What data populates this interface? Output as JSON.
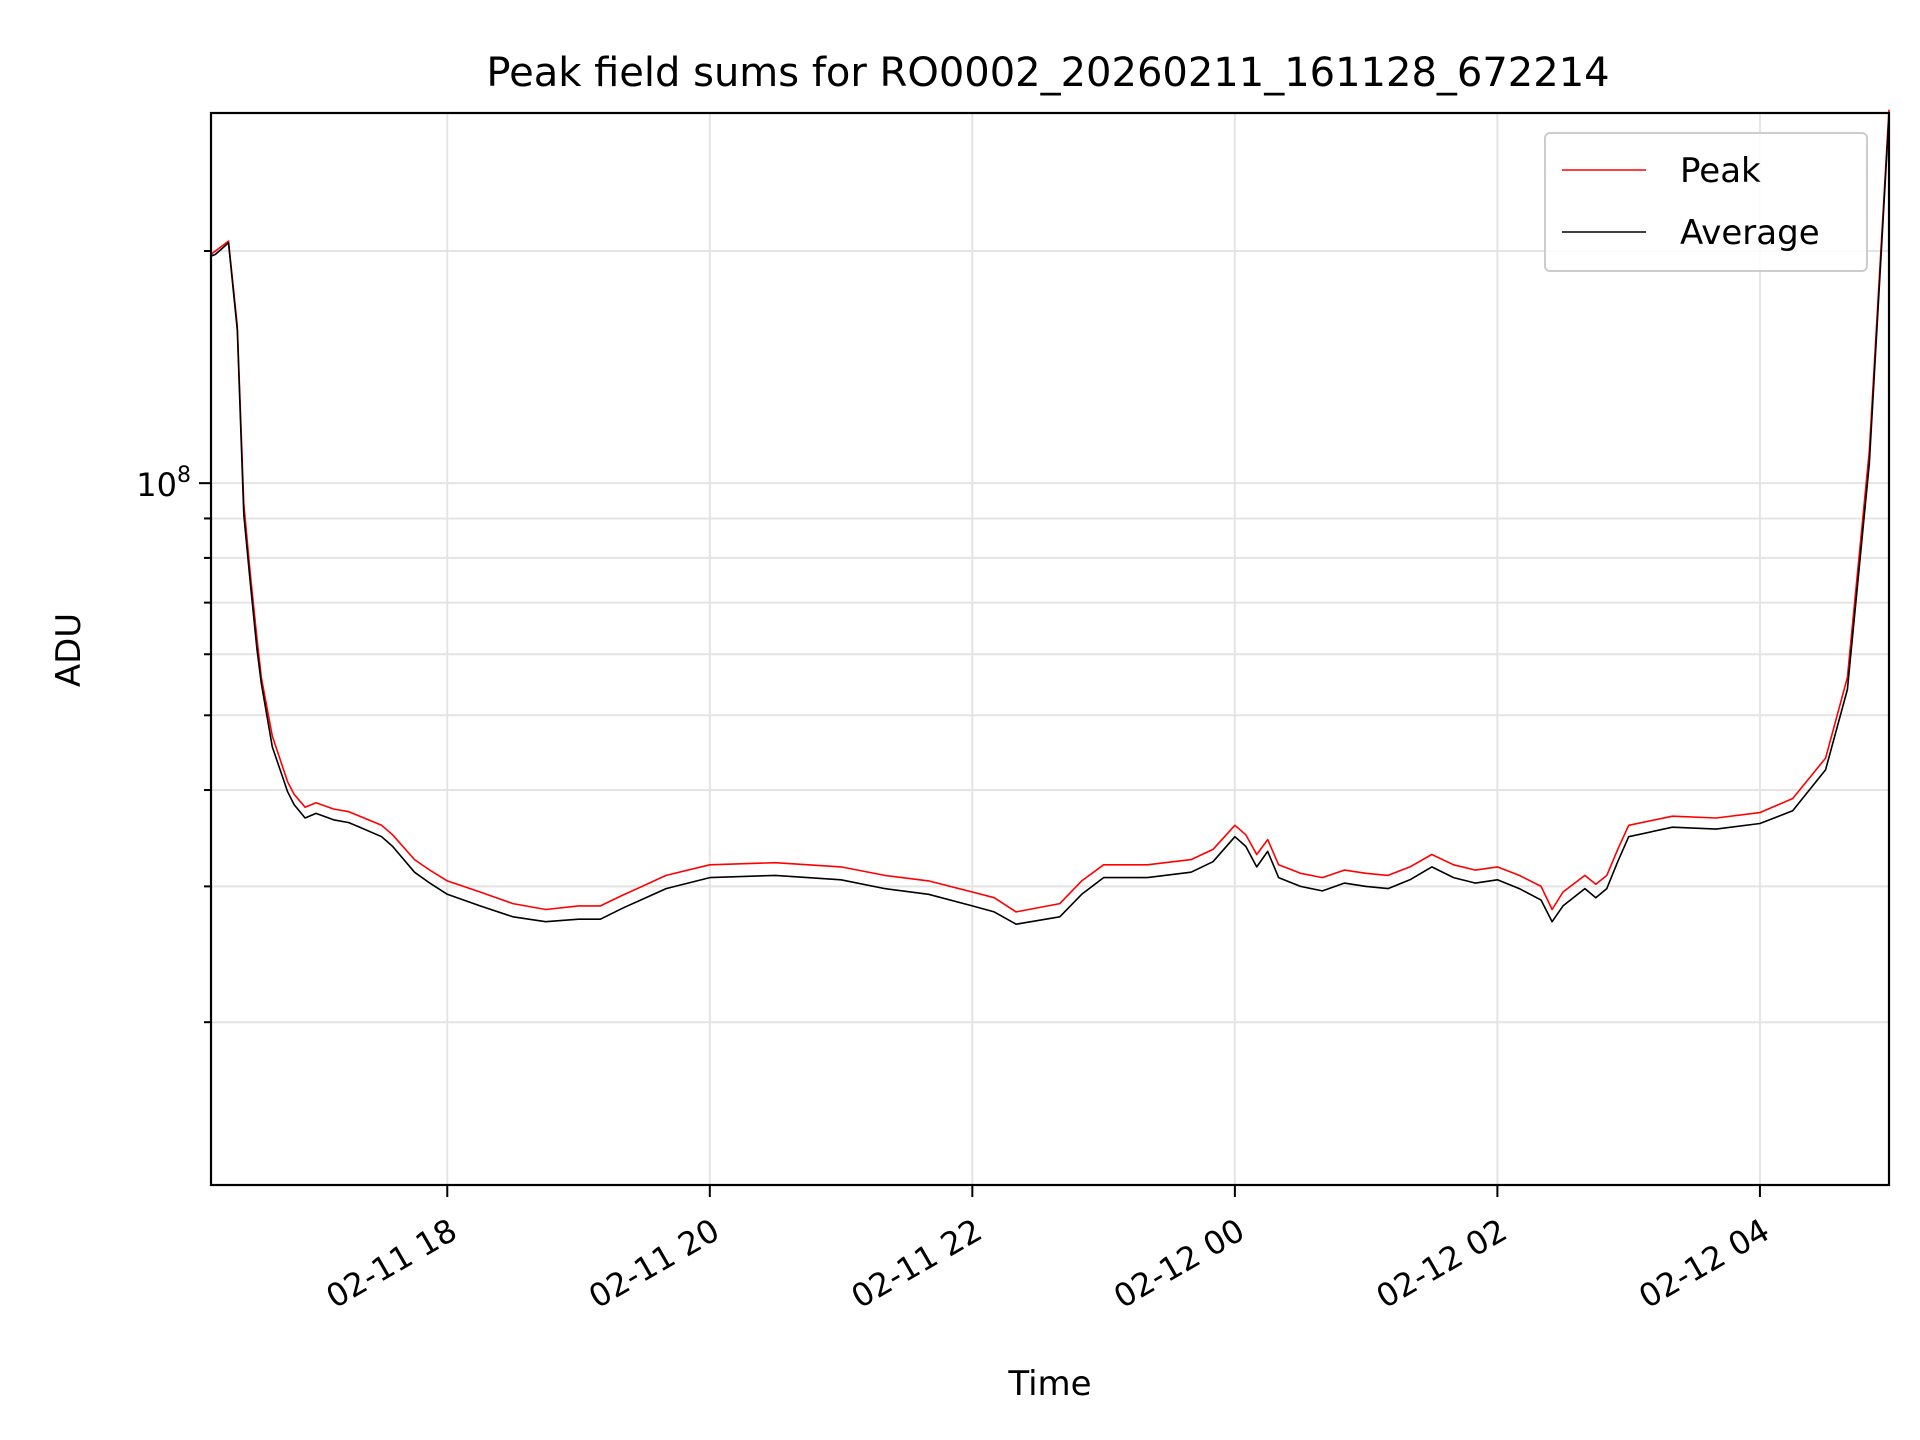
{
  "chart_data": {
    "type": "line",
    "title": "Peak field sums for RO0002_20260211_161128_672214",
    "xlabel": "Time",
    "ylabel": "ADU",
    "y_scale": "log",
    "grid": true,
    "legend_position": "top-right",
    "x_axis_type": "datetime",
    "xlim": [
      "2026-02-11 16:12",
      "2026-02-12 04:59"
    ],
    "ylim": [
      12300000,
      302000000
    ],
    "x_ticks": [
      {
        "x": "2026-02-11 18:00",
        "label": "02-11 18"
      },
      {
        "x": "2026-02-11 20:00",
        "label": "02-11 20"
      },
      {
        "x": "2026-02-11 22:00",
        "label": "02-11 22"
      },
      {
        "x": "2026-02-12 00:00",
        "label": "02-12 00"
      },
      {
        "x": "2026-02-12 02:00",
        "label": "02-12 02"
      },
      {
        "x": "2026-02-12 04:00",
        "label": "02-12 04"
      }
    ],
    "y_major_ticks": [
      {
        "y": 100000000,
        "label_base": "10",
        "label_exp": "8"
      }
    ],
    "y_minor_ticks": [
      20000000,
      30000000,
      40000000,
      50000000,
      60000000,
      70000000,
      80000000,
      90000000,
      200000000
    ],
    "series": [
      {
        "name": "Peak",
        "color": "#ff0000",
        "x": [
          "2026-02-11 16:12",
          "2026-02-11 16:14",
          "2026-02-11 16:20",
          "2026-02-11 16:24",
          "2026-02-11 16:27",
          "2026-02-11 16:30",
          "2026-02-11 16:33",
          "2026-02-11 16:35",
          "2026-02-11 16:40",
          "2026-02-11 16:47",
          "2026-02-11 16:50",
          "2026-02-11 16:55",
          "2026-02-11 17:00",
          "2026-02-11 17:08",
          "2026-02-11 17:15",
          "2026-02-11 17:20",
          "2026-02-11 17:30",
          "2026-02-11 17:35",
          "2026-02-11 17:45",
          "2026-02-11 17:52",
          "2026-02-11 18:00",
          "2026-02-11 18:15",
          "2026-02-11 18:30",
          "2026-02-11 18:45",
          "2026-02-11 19:00",
          "2026-02-11 19:10",
          "2026-02-11 19:20",
          "2026-02-11 19:40",
          "2026-02-11 20:00",
          "2026-02-11 20:30",
          "2026-02-11 21:00",
          "2026-02-11 21:20",
          "2026-02-11 21:40",
          "2026-02-11 22:00",
          "2026-02-11 22:10",
          "2026-02-11 22:20",
          "2026-02-11 22:40",
          "2026-02-11 22:50",
          "2026-02-11 23:00",
          "2026-02-11 23:20",
          "2026-02-11 23:40",
          "2026-02-11 23:50",
          "2026-02-12 00:00",
          "2026-02-12 00:05",
          "2026-02-12 00:10",
          "2026-02-12 00:15",
          "2026-02-12 00:20",
          "2026-02-12 00:30",
          "2026-02-12 00:40",
          "2026-02-12 00:50",
          "2026-02-12 01:00",
          "2026-02-12 01:10",
          "2026-02-12 01:20",
          "2026-02-12 01:30",
          "2026-02-12 01:40",
          "2026-02-12 01:50",
          "2026-02-12 02:00",
          "2026-02-12 02:10",
          "2026-02-12 02:20",
          "2026-02-12 02:25",
          "2026-02-12 02:30",
          "2026-02-12 02:40",
          "2026-02-12 02:45",
          "2026-02-12 02:50",
          "2026-02-12 02:55",
          "2026-02-12 03:00",
          "2026-02-12 03:20",
          "2026-02-12 03:40",
          "2026-02-12 04:00",
          "2026-02-12 04:15",
          "2026-02-12 04:30",
          "2026-02-12 04:40",
          "2026-02-12 04:50",
          "2026-02-12 04:59"
        ],
        "y": [
          198000000,
          200000000,
          206000000,
          160000000,
          94000000,
          76000000,
          63000000,
          56000000,
          47000000,
          41000000,
          39500000,
          38000000,
          38500000,
          37800000,
          37500000,
          37000000,
          36000000,
          35000000,
          32500000,
          31500000,
          30500000,
          29500000,
          28500000,
          28000000,
          28300000,
          28300000,
          29200000,
          31000000,
          32000000,
          32200000,
          31800000,
          31000000,
          30500000,
          29500000,
          29000000,
          27800000,
          28500000,
          30500000,
          32000000,
          32000000,
          32500000,
          33500000,
          36000000,
          35000000,
          33000000,
          34500000,
          32000000,
          31200000,
          30800000,
          31500000,
          31200000,
          31000000,
          31800000,
          33000000,
          32000000,
          31500000,
          31800000,
          31000000,
          30000000,
          28000000,
          29500000,
          31000000,
          30200000,
          31000000,
          33500000,
          36000000,
          37000000,
          36800000,
          37400000,
          39000000,
          44000000,
          56000000,
          110000000,
          305000000
        ]
      },
      {
        "name": "Average",
        "color": "#000000",
        "x": [
          "2026-02-11 16:12",
          "2026-02-11 16:14",
          "2026-02-11 16:20",
          "2026-02-11 16:24",
          "2026-02-11 16:27",
          "2026-02-11 16:30",
          "2026-02-11 16:33",
          "2026-02-11 16:35",
          "2026-02-11 16:40",
          "2026-02-11 16:47",
          "2026-02-11 16:50",
          "2026-02-11 16:55",
          "2026-02-11 17:00",
          "2026-02-11 17:08",
          "2026-02-11 17:15",
          "2026-02-11 17:20",
          "2026-02-11 17:30",
          "2026-02-11 17:35",
          "2026-02-11 17:45",
          "2026-02-11 17:52",
          "2026-02-11 18:00",
          "2026-02-11 18:15",
          "2026-02-11 18:30",
          "2026-02-11 18:45",
          "2026-02-11 19:00",
          "2026-02-11 19:10",
          "2026-02-11 19:20",
          "2026-02-11 19:40",
          "2026-02-11 20:00",
          "2026-02-11 20:30",
          "2026-02-11 21:00",
          "2026-02-11 21:20",
          "2026-02-11 21:40",
          "2026-02-11 22:00",
          "2026-02-11 22:10",
          "2026-02-11 22:20",
          "2026-02-11 22:40",
          "2026-02-11 22:50",
          "2026-02-11 23:00",
          "2026-02-11 23:20",
          "2026-02-11 23:40",
          "2026-02-11 23:50",
          "2026-02-12 00:00",
          "2026-02-12 00:05",
          "2026-02-12 00:10",
          "2026-02-12 00:15",
          "2026-02-12 00:20",
          "2026-02-12 00:30",
          "2026-02-12 00:40",
          "2026-02-12 00:50",
          "2026-02-12 01:00",
          "2026-02-12 01:10",
          "2026-02-12 01:20",
          "2026-02-12 01:30",
          "2026-02-12 01:40",
          "2026-02-12 01:50",
          "2026-02-12 02:00",
          "2026-02-12 02:10",
          "2026-02-12 02:20",
          "2026-02-12 02:25",
          "2026-02-12 02:30",
          "2026-02-12 02:40",
          "2026-02-12 02:45",
          "2026-02-12 02:50",
          "2026-02-12 02:55",
          "2026-02-12 03:00",
          "2026-02-12 03:20",
          "2026-02-12 03:40",
          "2026-02-12 04:00",
          "2026-02-12 04:15",
          "2026-02-12 04:30",
          "2026-02-12 04:40",
          "2026-02-12 04:50",
          "2026-02-12 04:59"
        ],
        "y": [
          197000000,
          198000000,
          205000000,
          158000000,
          91000000,
          74000000,
          61000000,
          55000000,
          45500000,
          39800000,
          38300000,
          36800000,
          37300000,
          36600000,
          36300000,
          35800000,
          34800000,
          33800000,
          31300000,
          30300000,
          29300000,
          28300000,
          27400000,
          27000000,
          27200000,
          27200000,
          28100000,
          29800000,
          30800000,
          31000000,
          30600000,
          29800000,
          29300000,
          28300000,
          27800000,
          26800000,
          27400000,
          29300000,
          30800000,
          30800000,
          31300000,
          32300000,
          34800000,
          33800000,
          31800000,
          33300000,
          30800000,
          30000000,
          29600000,
          30300000,
          30000000,
          29800000,
          30600000,
          31800000,
          30800000,
          30300000,
          30600000,
          29800000,
          28800000,
          27000000,
          28300000,
          29800000,
          29000000,
          29800000,
          32300000,
          34800000,
          35800000,
          35600000,
          36200000,
          37600000,
          42500000,
          54000000,
          106000000,
          300000000
        ]
      }
    ]
  }
}
